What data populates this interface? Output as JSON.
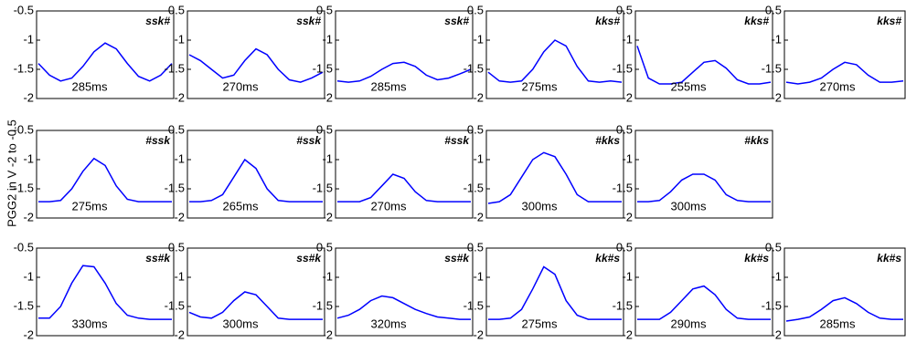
{
  "ylabel": "PGG2 in V -2 to -0.5",
  "chart_data": [
    {
      "type": "line",
      "label": "ssk#",
      "annotation": "285ms",
      "color": "#0000ff",
      "ylim": [
        -2,
        -0.5
      ],
      "yticks": [
        -0.5,
        -1,
        -1.5,
        -2
      ],
      "values": [
        -1.4,
        -1.6,
        -1.7,
        -1.65,
        -1.45,
        -1.2,
        -1.05,
        -1.15,
        -1.4,
        -1.62,
        -1.7,
        -1.6,
        -1.4
      ]
    },
    {
      "type": "line",
      "label": "ssk#",
      "annotation": "270ms",
      "color": "#0000ff",
      "ylim": [
        -2,
        -0.5
      ],
      "yticks": [
        -0.5,
        -1,
        -1.5,
        -2
      ],
      "values": [
        -1.25,
        -1.35,
        -1.5,
        -1.65,
        -1.6,
        -1.35,
        -1.15,
        -1.25,
        -1.5,
        -1.68,
        -1.72,
        -1.65,
        -1.55
      ]
    },
    {
      "type": "line",
      "label": "ssk#",
      "annotation": "285ms",
      "color": "#0000ff",
      "ylim": [
        -2,
        -0.5
      ],
      "yticks": [
        -0.5,
        -1,
        -1.5,
        -2
      ],
      "values": [
        -1.7,
        -1.72,
        -1.7,
        -1.62,
        -1.5,
        -1.4,
        -1.38,
        -1.45,
        -1.6,
        -1.68,
        -1.65,
        -1.58,
        -1.5
      ]
    },
    {
      "type": "line",
      "label": "kks#",
      "annotation": "275ms",
      "color": "#0000ff",
      "ylim": [
        -2,
        -0.5
      ],
      "yticks": [
        -0.5,
        -1,
        -1.5,
        -2
      ],
      "values": [
        -1.55,
        -1.7,
        -1.72,
        -1.7,
        -1.5,
        -1.2,
        -1.0,
        -1.1,
        -1.45,
        -1.7,
        -1.72,
        -1.7,
        -1.72
      ]
    },
    {
      "type": "line",
      "label": "kks#",
      "annotation": "255ms",
      "color": "#0000ff",
      "ylim": [
        -2,
        -0.5
      ],
      "yticks": [
        -0.5,
        -1,
        -1.5,
        -2
      ],
      "values": [
        -1.1,
        -1.65,
        -1.75,
        -1.75,
        -1.72,
        -1.55,
        -1.38,
        -1.35,
        -1.48,
        -1.68,
        -1.75,
        -1.75,
        -1.72
      ]
    },
    {
      "type": "line",
      "label": "kks#",
      "annotation": "270ms",
      "color": "#0000ff",
      "ylim": [
        -2,
        -0.5
      ],
      "yticks": [
        -0.5,
        -1,
        -1.5,
        -2
      ],
      "values": [
        -1.72,
        -1.75,
        -1.72,
        -1.65,
        -1.5,
        -1.38,
        -1.42,
        -1.6,
        -1.72,
        -1.72,
        -1.7
      ]
    },
    {
      "type": "line",
      "label": "#ssk",
      "annotation": "275ms",
      "color": "#0000ff",
      "ylim": [
        -2,
        -0.5
      ],
      "yticks": [
        -0.5,
        -1,
        -1.5,
        -2
      ],
      "values": [
        -1.72,
        -1.72,
        -1.7,
        -1.5,
        -1.2,
        -0.98,
        -1.1,
        -1.45,
        -1.68,
        -1.72,
        -1.72,
        -1.72,
        -1.72
      ]
    },
    {
      "type": "line",
      "label": "#ssk",
      "annotation": "265ms",
      "color": "#0000ff",
      "ylim": [
        -2,
        -0.5
      ],
      "yticks": [
        -0.5,
        -1,
        -1.5,
        -2
      ],
      "values": [
        -1.72,
        -1.72,
        -1.7,
        -1.6,
        -1.3,
        -1.0,
        -1.15,
        -1.5,
        -1.7,
        -1.72,
        -1.72,
        -1.72,
        -1.72
      ]
    },
    {
      "type": "line",
      "label": "#ssk",
      "annotation": "270ms",
      "color": "#0000ff",
      "ylim": [
        -2,
        -0.5
      ],
      "yticks": [
        -0.5,
        -1,
        -1.5,
        -2
      ],
      "values": [
        -1.72,
        -1.72,
        -1.72,
        -1.65,
        -1.45,
        -1.25,
        -1.32,
        -1.55,
        -1.7,
        -1.72,
        -1.72,
        -1.72,
        -1.72
      ]
    },
    {
      "type": "line",
      "label": "#kks",
      "annotation": "300ms",
      "color": "#0000ff",
      "ylim": [
        -2,
        -0.5
      ],
      "yticks": [
        -0.5,
        -1,
        -1.5,
        -2
      ],
      "values": [
        -1.75,
        -1.72,
        -1.6,
        -1.3,
        -1.0,
        -0.88,
        -0.95,
        -1.25,
        -1.6,
        -1.72,
        -1.72,
        -1.72,
        -1.72
      ]
    },
    {
      "type": "line",
      "label": "#kks",
      "annotation": "300ms",
      "color": "#0000ff",
      "ylim": [
        -2,
        -0.5
      ],
      "yticks": [
        -0.5,
        -1,
        -1.5,
        -2
      ],
      "values": [
        -1.72,
        -1.72,
        -1.7,
        -1.55,
        -1.35,
        -1.25,
        -1.25,
        -1.35,
        -1.6,
        -1.7,
        -1.72,
        -1.72,
        -1.72
      ]
    },
    {
      "type": "line",
      "label": "ss#k",
      "annotation": "330ms",
      "color": "#0000ff",
      "ylim": [
        -2,
        -0.5
      ],
      "yticks": [
        -0.5,
        -1,
        -1.5,
        -2
      ],
      "values": [
        -1.7,
        -1.7,
        -1.5,
        -1.1,
        -0.8,
        -0.82,
        -1.1,
        -1.45,
        -1.65,
        -1.7,
        -1.72,
        -1.72,
        -1.72
      ]
    },
    {
      "type": "line",
      "label": "ss#k",
      "annotation": "300ms",
      "color": "#0000ff",
      "ylim": [
        -2,
        -0.5
      ],
      "yticks": [
        -0.5,
        -1,
        -1.5,
        -2
      ],
      "values": [
        -1.6,
        -1.68,
        -1.7,
        -1.6,
        -1.4,
        -1.25,
        -1.3,
        -1.5,
        -1.7,
        -1.72,
        -1.72,
        -1.72,
        -1.72
      ]
    },
    {
      "type": "line",
      "label": "ss#k",
      "annotation": "320ms",
      "color": "#0000ff",
      "ylim": [
        -2,
        -0.5
      ],
      "yticks": [
        -0.5,
        -1,
        -1.5,
        -2
      ],
      "values": [
        -1.7,
        -1.65,
        -1.55,
        -1.4,
        -1.32,
        -1.35,
        -1.45,
        -1.55,
        -1.62,
        -1.68,
        -1.7,
        -1.72,
        -1.72
      ]
    },
    {
      "type": "line",
      "label": "kk#s",
      "annotation": "275ms",
      "color": "#0000ff",
      "ylim": [
        -2,
        -0.5
      ],
      "yticks": [
        -0.5,
        -1,
        -1.5,
        -2
      ],
      "values": [
        -1.72,
        -1.72,
        -1.7,
        -1.55,
        -1.2,
        -0.82,
        -0.95,
        -1.4,
        -1.65,
        -1.72,
        -1.72,
        -1.72,
        -1.72
      ]
    },
    {
      "type": "line",
      "label": "kk#s",
      "annotation": "290ms",
      "color": "#0000ff",
      "ylim": [
        -2,
        -0.5
      ],
      "yticks": [
        -0.5,
        -1,
        -1.5,
        -2
      ],
      "values": [
        -1.72,
        -1.72,
        -1.72,
        -1.6,
        -1.4,
        -1.2,
        -1.15,
        -1.3,
        -1.55,
        -1.7,
        -1.72,
        -1.72,
        -1.72
      ]
    },
    {
      "type": "line",
      "label": "kk#s",
      "annotation": "285ms",
      "color": "#0000ff",
      "ylim": [
        -2,
        -0.5
      ],
      "yticks": [
        -0.5,
        -1,
        -1.5,
        -2
      ],
      "values": [
        -1.75,
        -1.72,
        -1.68,
        -1.55,
        -1.4,
        -1.35,
        -1.45,
        -1.6,
        -1.7,
        -1.72,
        -1.72
      ]
    }
  ]
}
